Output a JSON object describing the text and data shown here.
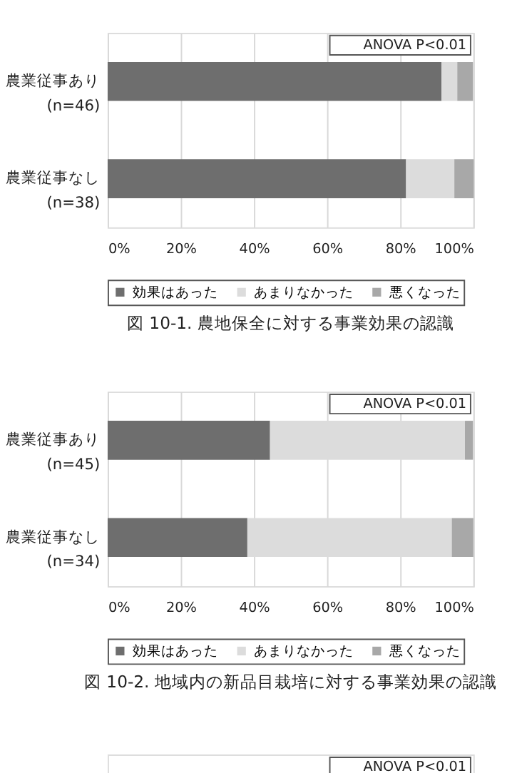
{
  "chart_data": [
    {
      "type": "bar",
      "orientation": "horizontal",
      "stacked": true,
      "title": "図 10-1.  農地保全に対する事業効果の認識",
      "categories": [
        "農業従事あり\n(n=46)",
        "農業従事なし\n(n=38)"
      ],
      "series": [
        {
          "name": "効果はあった",
          "color": "#6e6e6e",
          "values": [
            91.3,
            81.6
          ]
        },
        {
          "name": "あまりなかった",
          "color": "#dcdcdc",
          "values": [
            4.3,
            13.2
          ]
        },
        {
          "name": "悪くなった",
          "color": "#a8a8a8",
          "values": [
            4.3,
            5.3
          ]
        }
      ],
      "xlim": [
        0,
        100
      ],
      "xticks": [
        {
          "value": 0,
          "label": "0%"
        },
        {
          "value": 20,
          "label": "20%"
        },
        {
          "value": 40,
          "label": "40%"
        },
        {
          "value": 60,
          "label": "60%"
        },
        {
          "value": 80,
          "label": "80%"
        },
        {
          "value": 100,
          "label": "100%"
        }
      ],
      "grid": "x",
      "legend": "bottom",
      "annotations": [
        "ANOVA   P<0.01"
      ]
    },
    {
      "type": "bar",
      "orientation": "horizontal",
      "stacked": true,
      "title": "図 10-2.  地域内の新品目栽培に対する事業効果の認識",
      "categories": [
        "農業従事あり\n(n=45)",
        "農業従事なし\n(n=34)"
      ],
      "series": [
        {
          "name": "効果はあった",
          "color": "#6e6e6e",
          "values": [
            44.4,
            38.2
          ]
        },
        {
          "name": "あまりなかった",
          "color": "#dcdcdc",
          "values": [
            53.3,
            55.9
          ]
        },
        {
          "name": "悪くなった",
          "color": "#a8a8a8",
          "values": [
            2.2,
            5.9
          ]
        }
      ],
      "xlim": [
        0,
        100
      ],
      "xticks": [
        {
          "value": 0,
          "label": "0%"
        },
        {
          "value": 20,
          "label": "20%"
        },
        {
          "value": 40,
          "label": "40%"
        },
        {
          "value": 60,
          "label": "60%"
        },
        {
          "value": 80,
          "label": "80%"
        },
        {
          "value": 100,
          "label": "100%"
        }
      ],
      "grid": "x",
      "legend": "bottom",
      "annotations": [
        "ANOVA   P<0.01"
      ]
    },
    {
      "type": "other",
      "annotations": [
        "ANOVA   P<0.01"
      ]
    }
  ]
}
